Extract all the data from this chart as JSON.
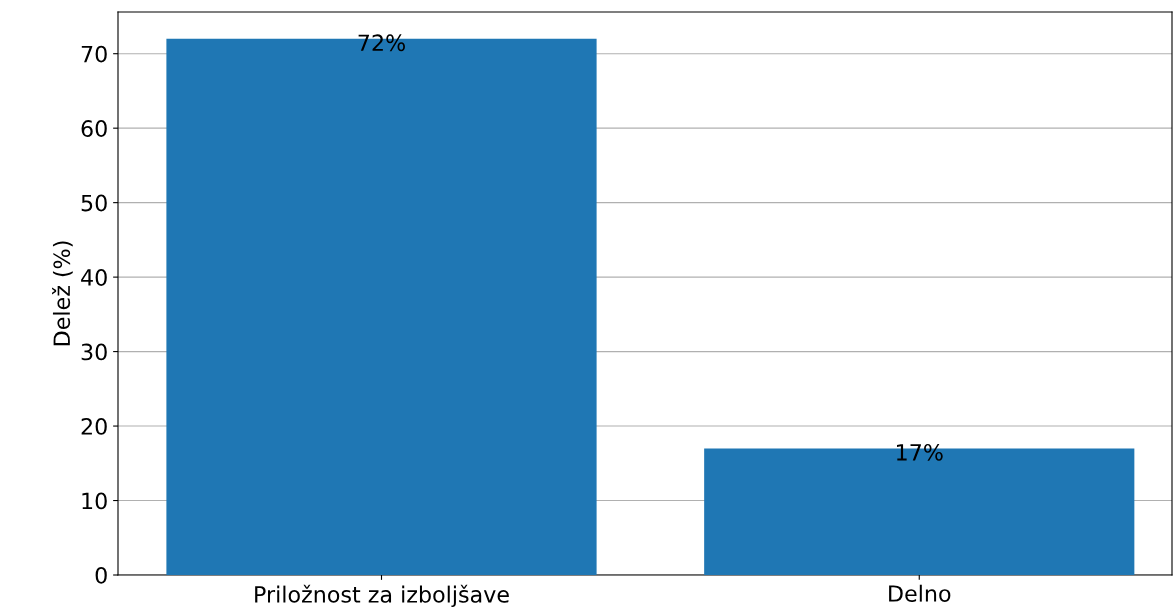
{
  "chart_data": {
    "type": "bar",
    "ylabel": "Delež (%)",
    "categories": [
      "Priložnost za izboljšave",
      "Delno"
    ],
    "values": [
      72,
      17
    ],
    "value_labels": [
      "72%",
      "17%"
    ],
    "color": "#1f77b4",
    "ylim": [
      0,
      75.6
    ],
    "yticks": [
      0,
      10,
      20,
      30,
      40,
      50,
      60,
      70
    ],
    "grid": "y",
    "legend": false
  }
}
